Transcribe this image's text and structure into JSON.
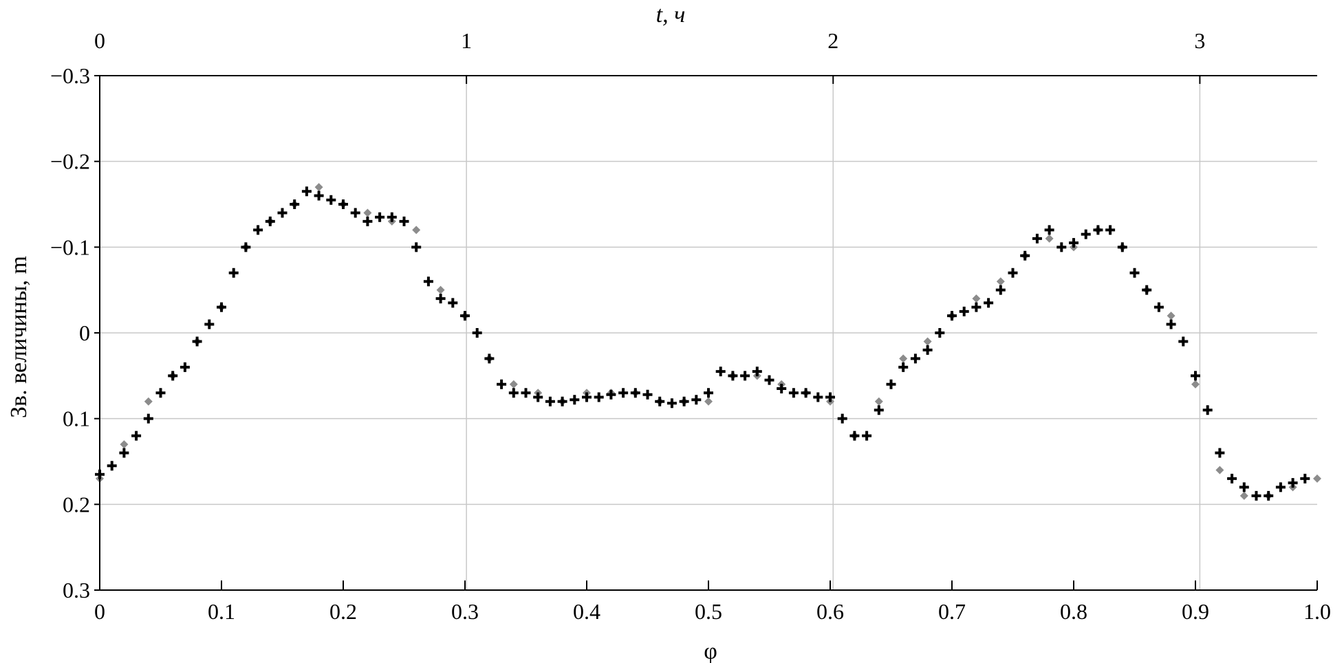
{
  "chart_data": {
    "type": "scatter",
    "title": "",
    "xlabel": "φ",
    "ylabel": "Зв. величины, m",
    "x2label": "t, ч",
    "xlim": [
      0,
      1
    ],
    "ylim": [
      -0.3,
      0.3
    ],
    "y_inverted": true,
    "x2lim": [
      0,
      3.32
    ],
    "x_ticks": [
      "0",
      "0.1",
      "0.2",
      "0.3",
      "0.4",
      "0.5",
      "0.6",
      "0.7",
      "0.8",
      "0.9",
      "1.0"
    ],
    "y_ticks": [
      "−0.3",
      "−0.2",
      "−0.1",
      "0",
      "0.1",
      "0.2",
      "0.3"
    ],
    "x2_ticks": [
      "0",
      "1",
      "2",
      "3"
    ],
    "grid": true,
    "colors": {
      "raw": "#8c8c8c",
      "smoothed": "#000000",
      "grid": "#c8c8c8"
    },
    "series": [
      {
        "marker": "diamond",
        "color": "#8c8c8c",
        "x": [
          0.0,
          0.02,
          0.04,
          0.06,
          0.08,
          0.1,
          0.12,
          0.14,
          0.16,
          0.18,
          0.2,
          0.22,
          0.24,
          0.26,
          0.28,
          0.3,
          0.32,
          0.34,
          0.36,
          0.38,
          0.4,
          0.42,
          0.44,
          0.46,
          0.48,
          0.5,
          0.52,
          0.54,
          0.56,
          0.58,
          0.6,
          0.62,
          0.64,
          0.66,
          0.68,
          0.7,
          0.72,
          0.74,
          0.76,
          0.78,
          0.8,
          0.82,
          0.84,
          0.86,
          0.88,
          0.9,
          0.92,
          0.94,
          0.96,
          0.98,
          1.0
        ],
        "y": [
          0.17,
          0.13,
          0.08,
          0.05,
          0.01,
          -0.03,
          -0.1,
          -0.13,
          -0.15,
          -0.17,
          -0.15,
          -0.14,
          -0.13,
          -0.12,
          -0.05,
          -0.02,
          0.03,
          0.06,
          0.07,
          0.08,
          0.07,
          0.07,
          0.07,
          0.08,
          0.08,
          0.08,
          0.05,
          0.05,
          0.06,
          0.07,
          0.08,
          0.12,
          0.08,
          0.03,
          0.01,
          -0.02,
          -0.04,
          -0.06,
          -0.09,
          -0.11,
          -0.1,
          -0.12,
          -0.1,
          -0.05,
          -0.02,
          0.06,
          0.16,
          0.19,
          0.19,
          0.18,
          0.17
        ]
      },
      {
        "marker": "plus",
        "color": "#000000",
        "x": [
          0.0,
          0.01,
          0.02,
          0.03,
          0.04,
          0.05,
          0.06,
          0.07,
          0.08,
          0.09,
          0.1,
          0.11,
          0.12,
          0.13,
          0.14,
          0.15,
          0.16,
          0.17,
          0.18,
          0.19,
          0.2,
          0.21,
          0.22,
          0.23,
          0.24,
          0.25,
          0.26,
          0.27,
          0.28,
          0.29,
          0.3,
          0.31,
          0.32,
          0.33,
          0.34,
          0.35,
          0.36,
          0.37,
          0.38,
          0.39,
          0.4,
          0.41,
          0.42,
          0.43,
          0.44,
          0.45,
          0.46,
          0.47,
          0.48,
          0.49,
          0.5,
          0.51,
          0.52,
          0.53,
          0.54,
          0.55,
          0.56,
          0.57,
          0.58,
          0.59,
          0.6,
          0.61,
          0.62,
          0.63,
          0.64,
          0.65,
          0.66,
          0.67,
          0.68,
          0.69,
          0.7,
          0.71,
          0.72,
          0.73,
          0.74,
          0.75,
          0.76,
          0.77,
          0.78,
          0.79,
          0.8,
          0.81,
          0.82,
          0.83,
          0.84,
          0.85,
          0.86,
          0.87,
          0.88,
          0.89,
          0.9,
          0.91,
          0.92,
          0.93,
          0.94,
          0.95,
          0.96,
          0.97,
          0.98,
          0.99
        ],
        "y": [
          0.165,
          0.155,
          0.14,
          0.12,
          0.1,
          0.07,
          0.05,
          0.04,
          0.01,
          -0.01,
          -0.03,
          -0.07,
          -0.1,
          -0.12,
          -0.13,
          -0.14,
          -0.15,
          -0.165,
          -0.16,
          -0.155,
          -0.15,
          -0.14,
          -0.13,
          -0.135,
          -0.135,
          -0.13,
          -0.1,
          -0.06,
          -0.04,
          -0.035,
          -0.02,
          0.0,
          0.03,
          0.06,
          0.07,
          0.07,
          0.075,
          0.08,
          0.08,
          0.078,
          0.075,
          0.075,
          0.072,
          0.07,
          0.07,
          0.072,
          0.08,
          0.082,
          0.08,
          0.078,
          0.07,
          0.045,
          0.05,
          0.05,
          0.045,
          0.055,
          0.065,
          0.07,
          0.07,
          0.075,
          0.075,
          0.1,
          0.12,
          0.12,
          0.09,
          0.06,
          0.04,
          0.03,
          0.02,
          0.0,
          -0.02,
          -0.025,
          -0.03,
          -0.035,
          -0.05,
          -0.07,
          -0.09,
          -0.11,
          -0.12,
          -0.1,
          -0.105,
          -0.115,
          -0.12,
          -0.12,
          -0.1,
          -0.07,
          -0.05,
          -0.03,
          -0.01,
          0.01,
          0.05,
          0.09,
          0.14,
          0.17,
          0.18,
          0.19,
          0.19,
          0.18,
          0.175,
          0.17
        ]
      }
    ]
  }
}
